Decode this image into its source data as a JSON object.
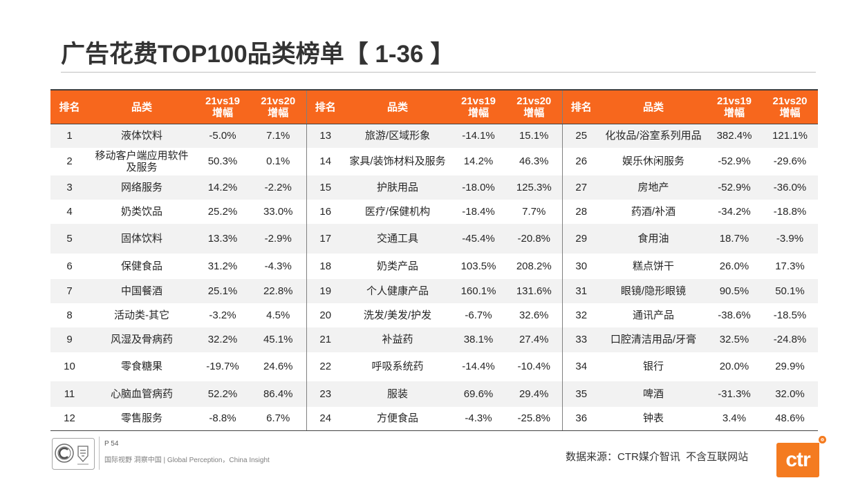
{
  "title": "广告花费TOP100品类榜单【 1-36 】",
  "table": {
    "header": {
      "rank": "排名",
      "category": "品类",
      "vs19_line1": "21vs19",
      "vs19_line2": "增幅",
      "vs20_line1": "21vs20",
      "vs20_line2": "增幅"
    },
    "groups": [
      {
        "rows": [
          {
            "rank": "1",
            "category": "液体饮料",
            "vs19": "-5.0%",
            "vs20": "7.1%"
          },
          {
            "rank": "2",
            "category": "移动客户端应用软件及服务",
            "vs19": "50.3%",
            "vs20": "0.1%"
          },
          {
            "rank": "3",
            "category": "网络服务",
            "vs19": "14.2%",
            "vs20": "-2.2%"
          },
          {
            "rank": "4",
            "category": "奶类饮品",
            "vs19": "25.2%",
            "vs20": "33.0%"
          },
          {
            "rank": "5",
            "category": "固体饮料",
            "vs19": "13.3%",
            "vs20": "-2.9%"
          },
          {
            "rank": "6",
            "category": "保健食品",
            "vs19": "31.2%",
            "vs20": "-4.3%"
          },
          {
            "rank": "7",
            "category": "中国餐酒",
            "vs19": "25.1%",
            "vs20": "22.8%"
          },
          {
            "rank": "8",
            "category": "活动类-其它",
            "vs19": "-3.2%",
            "vs20": "4.5%"
          },
          {
            "rank": "9",
            "category": "风湿及骨病药",
            "vs19": "32.2%",
            "vs20": "45.1%"
          },
          {
            "rank": "10",
            "category": "零食糖果",
            "vs19": "-19.7%",
            "vs20": "24.6%"
          },
          {
            "rank": "11",
            "category": "心脑血管病药",
            "vs19": "52.2%",
            "vs20": "86.4%"
          },
          {
            "rank": "12",
            "category": "零售服务",
            "vs19": "-8.8%",
            "vs20": "6.7%"
          }
        ]
      },
      {
        "rows": [
          {
            "rank": "13",
            "category": "旅游/区域形象",
            "vs19": "-14.1%",
            "vs20": "15.1%"
          },
          {
            "rank": "14",
            "category": "家具/装饰材料及服务",
            "vs19": "14.2%",
            "vs20": "46.3%"
          },
          {
            "rank": "15",
            "category": "护肤用品",
            "vs19": "-18.0%",
            "vs20": "125.3%"
          },
          {
            "rank": "16",
            "category": "医疗/保健机构",
            "vs19": "-18.4%",
            "vs20": "7.7%"
          },
          {
            "rank": "17",
            "category": "交通工具",
            "vs19": "-45.4%",
            "vs20": "-20.8%"
          },
          {
            "rank": "18",
            "category": "奶类产品",
            "vs19": "103.5%",
            "vs20": "208.2%"
          },
          {
            "rank": "19",
            "category": "个人健康产品",
            "vs19": "160.1%",
            "vs20": "131.6%"
          },
          {
            "rank": "20",
            "category": "洗发/美发/护发",
            "vs19": "-6.7%",
            "vs20": "32.6%"
          },
          {
            "rank": "21",
            "category": "补益药",
            "vs19": "38.1%",
            "vs20": "27.4%"
          },
          {
            "rank": "22",
            "category": "呼吸系统药",
            "vs19": "-14.4%",
            "vs20": "-10.4%"
          },
          {
            "rank": "23",
            "category": "服装",
            "vs19": "69.6%",
            "vs20": "29.4%"
          },
          {
            "rank": "24",
            "category": "方便食品",
            "vs19": "-4.3%",
            "vs20": "-25.8%"
          }
        ]
      },
      {
        "rows": [
          {
            "rank": "25",
            "category": "化妆品/浴室系列用品",
            "vs19": "382.4%",
            "vs20": "121.1%"
          },
          {
            "rank": "26",
            "category": "娱乐休闲服务",
            "vs19": "-52.9%",
            "vs20": "-29.6%"
          },
          {
            "rank": "27",
            "category": "房地产",
            "vs19": "-52.9%",
            "vs20": "-36.0%"
          },
          {
            "rank": "28",
            "category": "药酒/补酒",
            "vs19": "-34.2%",
            "vs20": "-18.8%"
          },
          {
            "rank": "29",
            "category": "食用油",
            "vs19": "18.7%",
            "vs20": "-3.9%"
          },
          {
            "rank": "30",
            "category": "糕点饼干",
            "vs19": "26.0%",
            "vs20": "17.3%"
          },
          {
            "rank": "31",
            "category": "眼镜/隐形眼镜",
            "vs19": "90.5%",
            "vs20": "50.1%"
          },
          {
            "rank": "32",
            "category": "通讯产品",
            "vs19": "-38.6%",
            "vs20": "-18.5%"
          },
          {
            "rank": "33",
            "category": "口腔清洁用品/牙膏",
            "vs19": "32.5%",
            "vs20": "-24.8%"
          },
          {
            "rank": "34",
            "category": "银行",
            "vs19": "20.0%",
            "vs20": "29.9%"
          },
          {
            "rank": "35",
            "category": "啤酒",
            "vs19": "-31.3%",
            "vs20": "32.0%"
          },
          {
            "rank": "36",
            "category": "钟表",
            "vs19": "3.4%",
            "vs20": "48.6%"
          }
        ]
      }
    ]
  },
  "footer": {
    "page": "P 54",
    "slogan": "国际视野 洞察中国 | Global Perception，China Insight",
    "source": "数据来源：CTR媒介智讯  不含互联网站",
    "logo_text": "ctr",
    "logo_icons": [
      "certification-seal-icon",
      "certification-mark-icon"
    ]
  },
  "colors": {
    "header_accent": "#f7671d",
    "logo_orange": "#f47b20",
    "row_alt": "#f2f2f2"
  }
}
